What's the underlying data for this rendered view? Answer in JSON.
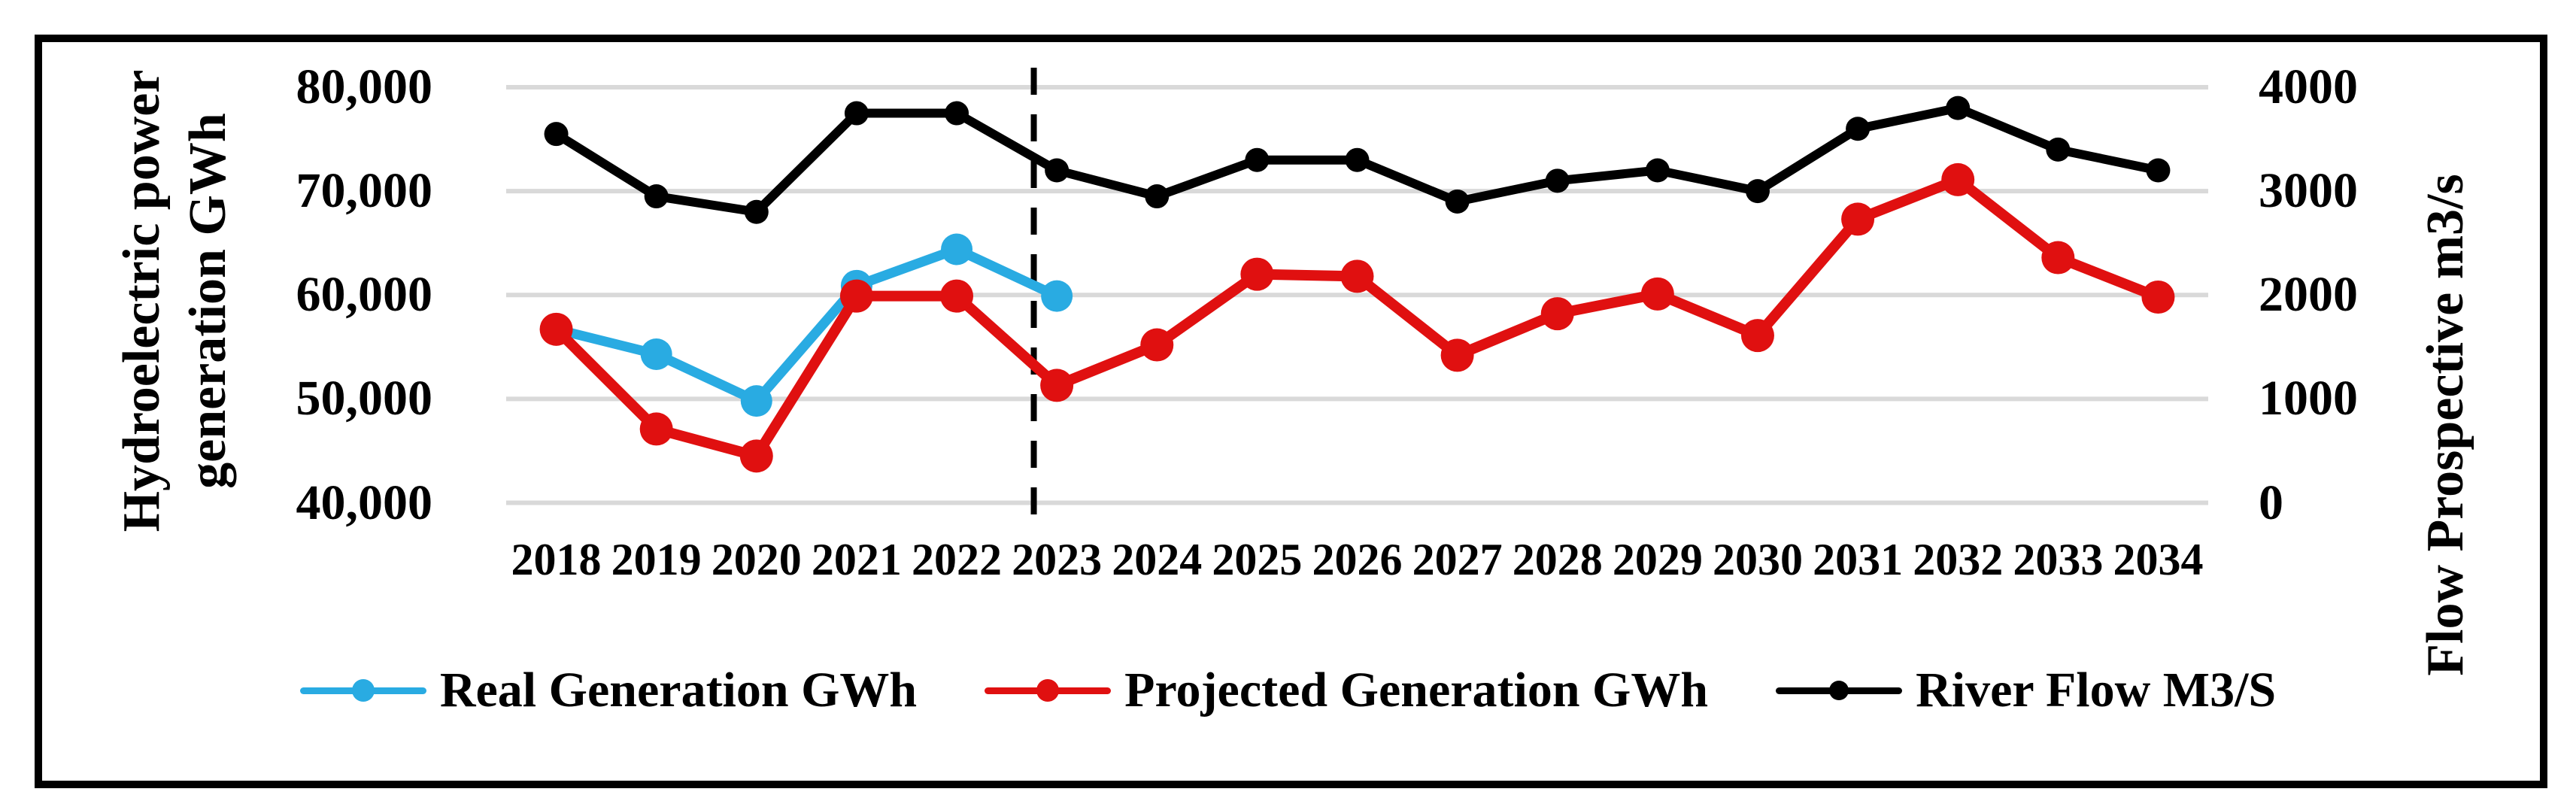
{
  "figure": {
    "background": "#ffffff",
    "border_color": "#000000",
    "gridline_color": "#d9d9d9"
  },
  "chart_data": {
    "type": "line",
    "title": "",
    "x": [
      "2018",
      "2019",
      "2020",
      "2021",
      "2022",
      "2023",
      "2024",
      "2025",
      "2026",
      "2027",
      "2028",
      "2029",
      "2030",
      "2031",
      "2032",
      "2033",
      "2034"
    ],
    "series": [
      {
        "name": "Real Generation GWh",
        "axis": "left",
        "color": "#29abe2",
        "values": [
          56700,
          54300,
          49800,
          60900,
          64400,
          59900
        ]
      },
      {
        "name": "Projected Generation GWh",
        "axis": "left",
        "color": "#e01010",
        "values": [
          56700,
          47100,
          44500,
          59900,
          59900,
          51300,
          55200,
          62000,
          61800,
          54200,
          58200,
          60100,
          56100,
          67300,
          71100,
          63600,
          59800
        ]
      },
      {
        "name": "River Flow M3/S",
        "axis": "right",
        "color": "#000000",
        "values": [
          3550,
          2950,
          2800,
          3750,
          3750,
          3200,
          2950,
          3300,
          3300,
          2900,
          3100,
          3200,
          3000,
          3600,
          3800,
          3400,
          3200
        ]
      }
    ],
    "left_axis": {
      "title_lines": [
        "Hydroelectric power",
        "generation GWh"
      ],
      "tick_labels": [
        "80,000",
        "70,000",
        "60,000",
        "50,000",
        "40,000"
      ],
      "tick_values": [
        80000,
        70000,
        60000,
        50000,
        40000
      ],
      "range": [
        40000,
        80000
      ]
    },
    "right_axis": {
      "title": "Flow Prospective m3/s",
      "tick_labels": [
        "4000",
        "3000",
        "2000",
        "1000",
        "0"
      ],
      "tick_values": [
        4000,
        3000,
        2000,
        1000,
        0
      ],
      "range": [
        0,
        4000
      ]
    },
    "annotations": {
      "forecast_divider": {
        "between": [
          "2022",
          "2023"
        ],
        "fraction": 0.77,
        "style": "dashed",
        "color": "#000000"
      }
    },
    "grid": true,
    "legend_position": "bottom"
  }
}
